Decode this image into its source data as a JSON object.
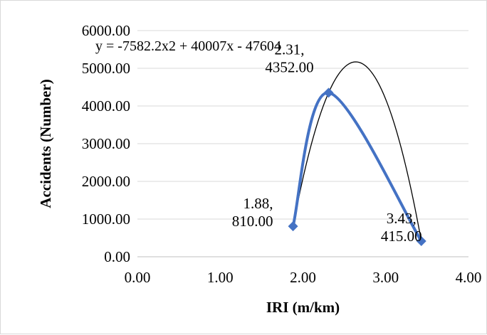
{
  "chart_data": {
    "type": "scatter",
    "xlabel": "IRI (m/km)",
    "ylabel": "Accidents (Number)",
    "xlim": [
      0,
      4
    ],
    "ylim": [
      0,
      6000
    ],
    "x_ticks": [
      "0.00",
      "1.00",
      "2.00",
      "3.00",
      "4.00"
    ],
    "y_ticks": [
      "0.00",
      "1000.00",
      "2000.00",
      "3000.00",
      "4000.00",
      "5000.00",
      "6000.00"
    ],
    "grid": "horizontal",
    "series": [
      {
        "points": [
          {
            "x": 1.88,
            "y": 810.0,
            "label_line1": "1.88,",
            "label_line2": "810.00"
          },
          {
            "x": 2.31,
            "y": 4352.0,
            "label_line1": "2.31,",
            "label_line2": "4352.00"
          },
          {
            "x": 3.43,
            "y": 415.0,
            "label_line1": "3.43,",
            "label_line2": "415.00"
          }
        ],
        "line_style": "smoothed",
        "color": "#4472C4",
        "marker": "diamond"
      }
    ],
    "trendline": {
      "type": "polynomial",
      "order": 2,
      "coefficients": [
        -7582.2,
        40007,
        -47604
      ],
      "equation": "y = -7582.2x2 + 40007x - 47604",
      "color": "#000000"
    }
  }
}
